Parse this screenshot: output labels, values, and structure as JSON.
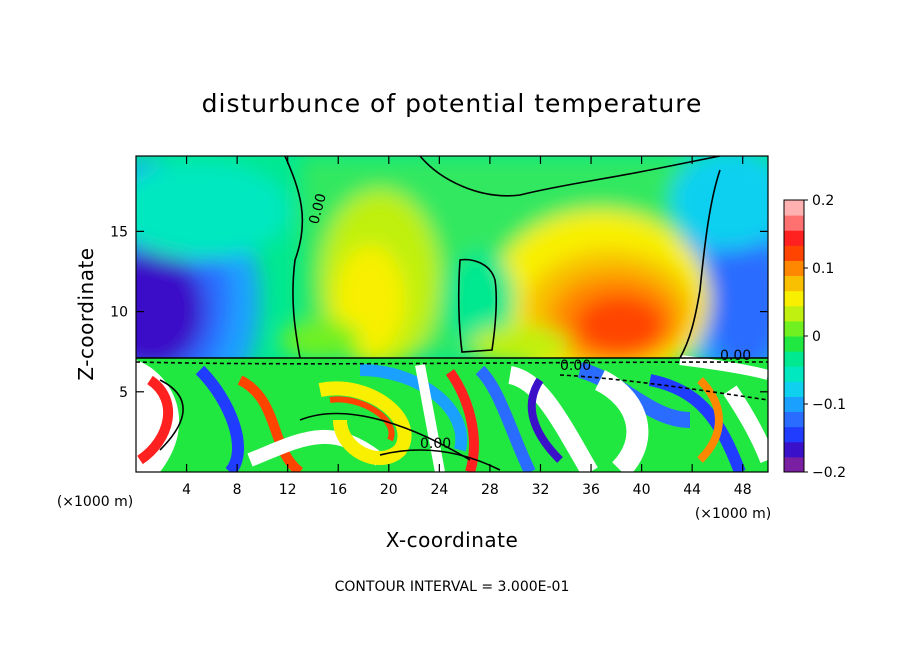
{
  "chart_data": {
    "type": "heatmap",
    "title": "disturbunce of potential temperature",
    "xlabel": "X-coordinate",
    "ylabel": "Z-coordinate",
    "x_unit": "(×1000 m)",
    "x_ticks": [
      4,
      8,
      12,
      16,
      20,
      24,
      28,
      32,
      36,
      40,
      44,
      48
    ],
    "y_ticks": [
      5,
      10,
      15
    ],
    "xlim": [
      0,
      50
    ],
    "ylim": [
      0,
      19.7
    ],
    "colorbar": {
      "range": [
        -0.2,
        0.2
      ],
      "tick_labels": [
        "0.2",
        "0.1",
        "0",
        "−0.1",
        "−0.2"
      ],
      "tick_values": [
        0.2,
        0.1,
        0,
        -0.1,
        -0.2
      ],
      "colors": [
        "#7b1fa2",
        "#3a10c8",
        "#1f3cff",
        "#2a6cff",
        "#1aa0ff",
        "#10d0f0",
        "#00e8c0",
        "#00e890",
        "#20e840",
        "#70f020",
        "#c0f010",
        "#f8f000",
        "#f8c000",
        "#ff8800",
        "#ff4400",
        "#ff2020",
        "#ff7070",
        "#ffb0b0"
      ]
    },
    "contour_label": "0.00",
    "contour_interval_text": "CONTOUR INTERVAL = 3.000E-01"
  }
}
